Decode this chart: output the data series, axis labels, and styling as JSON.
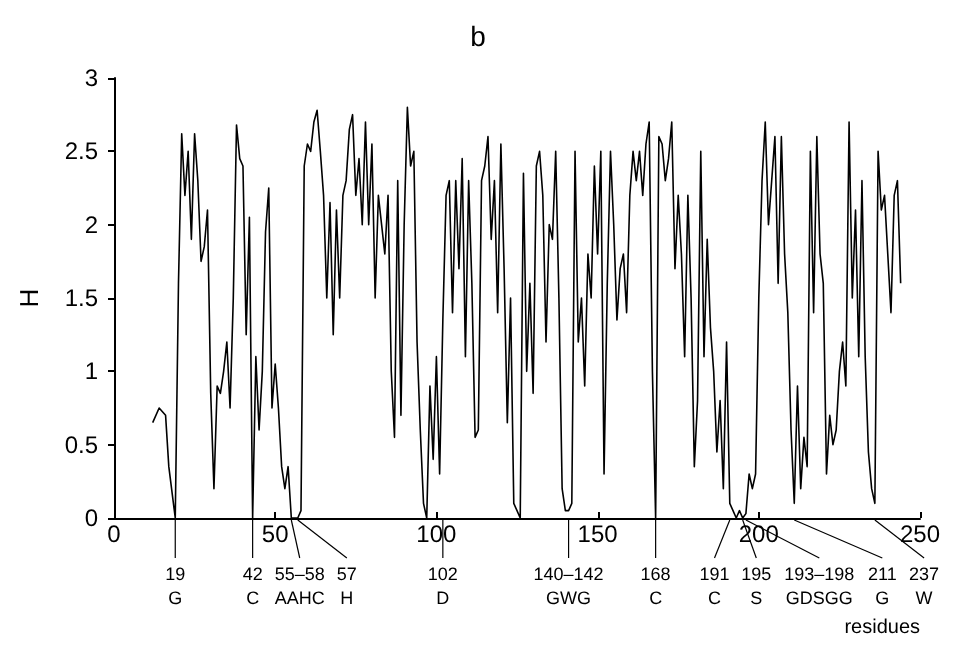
{
  "chart_data": {
    "type": "line",
    "title": "b",
    "xlabel": "residues",
    "ylabel": "H",
    "color": "#000000",
    "grid": false,
    "marker": "none",
    "line_style": "solid",
    "xlim": [
      0,
      250
    ],
    "xticks": [
      0,
      50,
      100,
      150,
      200,
      250
    ],
    "ylim": [
      0,
      3
    ],
    "yticks": [
      0,
      0.5,
      1,
      1.5,
      2,
      2.5,
      3
    ],
    "x": [
      12,
      14,
      16,
      17,
      19,
      20,
      21,
      22,
      23,
      24,
      25,
      26,
      27,
      28,
      29,
      30,
      31,
      32,
      33,
      34,
      35,
      36,
      37,
      38,
      39,
      40,
      41,
      42,
      43,
      44,
      45,
      46,
      47,
      48,
      49,
      50,
      51,
      52,
      53,
      54,
      55,
      57,
      58,
      59,
      60,
      61,
      62,
      63,
      64,
      65,
      66,
      67,
      68,
      69,
      70,
      71,
      72,
      73,
      74,
      75,
      76,
      77,
      78,
      79,
      80,
      81,
      82,
      83,
      84,
      85,
      86,
      87,
      88,
      89,
      90,
      91,
      92,
      93,
      94,
      95,
      96,
      97,
      98,
      99,
      100,
      101,
      102,
      103,
      104,
      105,
      106,
      107,
      108,
      109,
      110,
      111,
      112,
      113,
      114,
      115,
      116,
      117,
      118,
      119,
      120,
      121,
      122,
      123,
      124,
      125,
      126,
      127,
      128,
      129,
      130,
      131,
      132,
      133,
      134,
      135,
      136,
      137,
      138,
      139,
      140,
      141,
      142,
      143,
      144,
      145,
      146,
      147,
      148,
      149,
      150,
      151,
      152,
      153,
      154,
      155,
      156,
      157,
      158,
      159,
      160,
      161,
      162,
      163,
      164,
      165,
      166,
      167,
      168,
      169,
      170,
      171,
      172,
      173,
      174,
      175,
      176,
      177,
      178,
      179,
      180,
      181,
      182,
      183,
      184,
      185,
      186,
      187,
      188,
      189,
      190,
      191,
      192,
      193,
      194,
      195,
      196,
      197,
      198,
      199,
      200,
      201,
      202,
      203,
      204,
      205,
      206,
      207,
      208,
      209,
      210,
      211,
      212,
      213,
      214,
      215,
      216,
      217,
      218,
      219,
      220,
      221,
      222,
      223,
      224,
      225,
      226,
      227,
      228,
      229,
      230,
      231,
      232,
      233,
      234,
      235,
      236,
      237,
      238,
      239,
      240,
      241,
      242,
      243,
      244
    ],
    "values": [
      0.65,
      0.75,
      0.7,
      0.35,
      0,
      1.6,
      2.62,
      2.2,
      2.5,
      1.9,
      2.62,
      2.3,
      1.75,
      1.85,
      2.1,
      0.85,
      0.2,
      0.9,
      0.85,
      1.0,
      1.2,
      0.75,
      1.5,
      2.68,
      2.45,
      2.4,
      1.25,
      2.05,
      0,
      1.1,
      0.6,
      1.0,
      1.95,
      2.25,
      0.75,
      1.05,
      0.75,
      0.35,
      0.2,
      0.35,
      0,
      0,
      0.05,
      2.4,
      2.55,
      2.5,
      2.7,
      2.78,
      2.5,
      2.2,
      1.5,
      2.15,
      1.25,
      2.1,
      1.5,
      2.2,
      2.3,
      2.65,
      2.75,
      2.2,
      2.45,
      2.0,
      2.7,
      2.0,
      2.55,
      1.5,
      2.2,
      2.0,
      1.8,
      2.2,
      1.0,
      0.55,
      2.3,
      0.7,
      2.0,
      2.8,
      2.4,
      2.5,
      1.2,
      0.6,
      0.1,
      0,
      0.9,
      0.4,
      1.1,
      0.3,
      1.35,
      2.2,
      2.3,
      1.4,
      2.3,
      1.7,
      2.45,
      1.1,
      2.3,
      1.6,
      0.55,
      0.6,
      2.3,
      2.4,
      2.6,
      1.9,
      2.3,
      1.4,
      2.55,
      1.7,
      0.65,
      1.5,
      0.1,
      0.05,
      0,
      2.35,
      1.0,
      1.6,
      0.85,
      2.4,
      2.5,
      2.2,
      1.2,
      2.0,
      1.9,
      2.5,
      1.5,
      0.2,
      0.05,
      0.05,
      0.1,
      2.5,
      1.2,
      1.5,
      0.9,
      1.8,
      1.5,
      2.4,
      1.8,
      2.5,
      0.3,
      1.6,
      2.5,
      2.0,
      1.35,
      1.7,
      1.8,
      1.4,
      2.2,
      2.5,
      2.3,
      2.5,
      2.2,
      2.55,
      2.7,
      1.0,
      0,
      2.6,
      2.55,
      2.3,
      2.45,
      2.7,
      1.7,
      2.2,
      1.8,
      1.1,
      2.2,
      1.5,
      0.35,
      0.8,
      2.5,
      1.1,
      1.9,
      1.3,
      1.0,
      0.45,
      0.8,
      0.2,
      1.2,
      0.1,
      0.05,
      0,
      0.05,
      0,
      0.03,
      0.3,
      0.2,
      0.3,
      1.5,
      2.3,
      2.7,
      2.0,
      2.3,
      2.6,
      1.6,
      2.6,
      1.8,
      1.4,
      0.6,
      0.1,
      0.9,
      0.2,
      0.55,
      0.35,
      2.5,
      1.4,
      2.6,
      1.8,
      1.6,
      0.3,
      0.7,
      0.5,
      0.6,
      1.0,
      1.2,
      0.9,
      2.7,
      1.5,
      2.1,
      1.1,
      2.3,
      1.1,
      0.45,
      0.2,
      0.1,
      2.5,
      2.1,
      2.2,
      1.8,
      1.4,
      2.2,
      2.3,
      1.6
    ],
    "annotations": [
      {
        "text": "19\nG",
        "x": 19
      },
      {
        "text": "42\nC",
        "x": 43
      },
      {
        "text": "55–58\nAAHC",
        "x": 55
      },
      {
        "text": "57\nH",
        "x": 57
      },
      {
        "text": "102\nD",
        "x": 102
      },
      {
        "text": "140–142\nGWG",
        "x": 141
      },
      {
        "text": "168\nC",
        "x": 168
      },
      {
        "text": "191\nC",
        "x": 191
      },
      {
        "text": "195\nS",
        "x": 195
      },
      {
        "text": "193–198\nGDSGG",
        "x": 196
      },
      {
        "text": "211\nG",
        "x": 211
      },
      {
        "text": "237\nW",
        "x": 236
      }
    ]
  }
}
